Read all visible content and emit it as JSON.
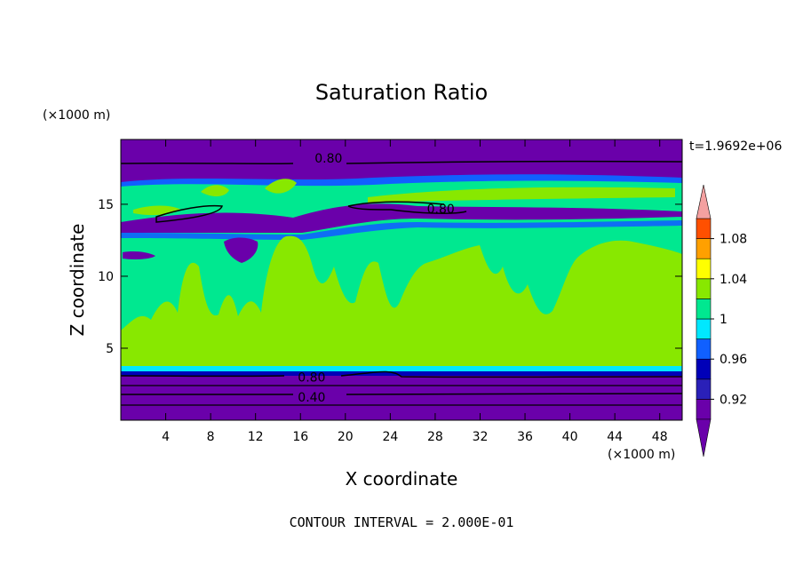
{
  "chart_data": {
    "type": "heatmap",
    "title": "Saturation Ratio",
    "xlabel": "X coordinate",
    "ylabel": "Z coordinate",
    "x_unit": "(×1000 m)",
    "y_unit": "(×1000 m)",
    "time_label": "t=1.9692e+06",
    "footer": "CONTOUR INTERVAL = 2.000E-01",
    "xlim": [
      0,
      50
    ],
    "ylim": [
      0,
      19.5
    ],
    "x_ticks": [
      4,
      8,
      12,
      16,
      20,
      24,
      28,
      32,
      36,
      40,
      44,
      48
    ],
    "y_ticks": [
      5,
      10,
      15
    ],
    "colorbar": {
      "levels": [
        0.9,
        0.92,
        0.94,
        0.96,
        0.98,
        1.0,
        1.02,
        1.04,
        1.06,
        1.08,
        1.1
      ],
      "tick_labels": [
        "0.92",
        "0.96",
        "1",
        "1.04",
        "1.08"
      ],
      "tick_values": [
        0.92,
        0.96,
        1.0,
        1.04,
        1.08
      ],
      "colors": [
        "#6a00aa",
        "#2a20b8",
        "#0000b8",
        "#1060ff",
        "#00e8ff",
        "#00e890",
        "#88e800",
        "#ffff00",
        "#ffa000",
        "#ff5000",
        "#ff0000"
      ],
      "under_color": "#6a00aa",
      "over_color": "#f4a0a0"
    },
    "contour_labels": [
      {
        "text": "0.80",
        "x": 18.5,
        "y": 18.2
      },
      {
        "text": "0.80",
        "x": 28.5,
        "y": 14.7
      },
      {
        "text": "0.80",
        "x": 17,
        "y": 3.0
      },
      {
        "text": "0.40",
        "x": 17,
        "y": 1.6
      }
    ]
  }
}
